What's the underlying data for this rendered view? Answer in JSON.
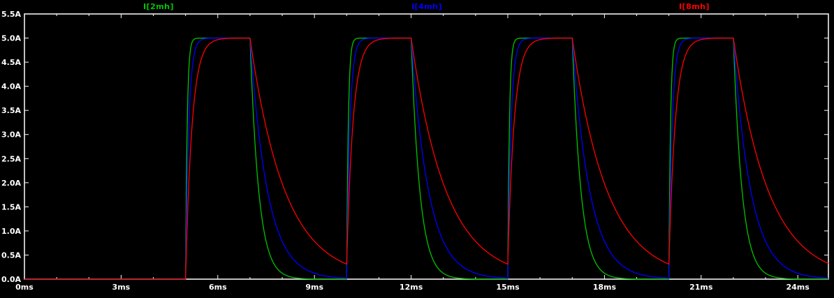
{
  "window": {
    "background_color": "#000000"
  },
  "chart_data": {
    "type": "line",
    "title": "",
    "legend_position": "top",
    "background_color": "#000000",
    "border_color": "#ffffff",
    "text_color": "#ffffff",
    "grid": false,
    "x_axis": {
      "unit": "ms",
      "min": 0,
      "max": 24.95,
      "major_tick_values": [
        0,
        3,
        6,
        9,
        12,
        15,
        18,
        21,
        24
      ],
      "major_tick_labels": [
        "0ms",
        "3ms",
        "6ms",
        "9ms",
        "12ms",
        "15ms",
        "18ms",
        "21ms",
        "24ms"
      ],
      "minor_tick_step": 1
    },
    "y_axis": {
      "unit": "A",
      "min": 0,
      "max": 5.5,
      "tick_values": [
        0,
        0.5,
        1.0,
        1.5,
        2.0,
        2.5,
        3.0,
        3.5,
        4.0,
        4.5,
        5.0,
        5.5
      ],
      "tick_labels": [
        "0.0A",
        "0.5A",
        "1.0A",
        "1.5A",
        "2.0A",
        "2.5A",
        "3.0A",
        "3.5A",
        "4.0A",
        "4.5A",
        "5.0A",
        "5.5A"
      ]
    },
    "waveform": {
      "description": "Periodic RL inductor charge/discharge current pulses",
      "amplitude_A": 5.0,
      "baseline_A": 0.0,
      "first_rise_ms": 5.0,
      "period_ms": 5.0,
      "on_duration_ms": 2.0
    },
    "series": [
      {
        "name": "I[2mh]",
        "color": "#00c400",
        "inductance_mH": 2,
        "tau_rise_ms": 0.05,
        "tau_decay_ms": 0.27,
        "peak_A": 5.0
      },
      {
        "name": "I[4mh]",
        "color": "#0000ff",
        "inductance_mH": 4,
        "tau_rise_ms": 0.1,
        "tau_decay_ms": 0.54,
        "peak_A": 5.0
      },
      {
        "name": "I[8mh]",
        "color": "#ff0000",
        "inductance_mH": 8,
        "tau_rise_ms": 0.2,
        "tau_decay_ms": 1.08,
        "peak_A": 5.0
      }
    ]
  }
}
